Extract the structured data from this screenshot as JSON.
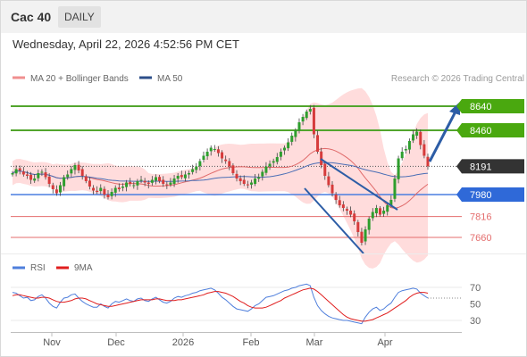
{
  "header": {
    "symbol": "Cac 40",
    "period": "DAILY"
  },
  "datetime": "Wednesday, April 22, 2026 4:52:56 PM CET",
  "legend": {
    "ma20": "MA 20 + Bollinger Bands",
    "ma50": "MA 50",
    "credit": "Research © 2026 Trading Central",
    "rsi": "RSI",
    "rsi_ma": "9MA"
  },
  "colors": {
    "up_candle": "#2e9e2e",
    "down_candle": "#d63b3b",
    "ma20": "#e06a6a",
    "ma50": "#4a6eb5",
    "bollinger_fill": "#ffd6d6",
    "resistance": "#52a52d",
    "pivot": "#4a7ee0",
    "support": "#e46e6e",
    "last_price": "#333333",
    "arrow": "#2d5da6",
    "rsi": "#4f7fdc",
    "rsi_ma": "#e01e1e"
  },
  "price_levels": [
    {
      "value": "8640",
      "kind": "resistance"
    },
    {
      "value": "8460",
      "kind": "resistance"
    },
    {
      "value": "8191",
      "kind": "last"
    },
    {
      "value": "7980",
      "kind": "pivot"
    },
    {
      "value": "7816",
      "kind": "support"
    },
    {
      "value": "7660",
      "kind": "support"
    }
  ],
  "x_axis_labels": [
    "Nov",
    "Dec",
    "2026",
    "Feb",
    "Mar",
    "Apr"
  ],
  "rsi_axis_labels": [
    "70",
    "50",
    "30"
  ],
  "chart_data": {
    "type": "candlestick",
    "price_range": [
      7540,
      8760
    ],
    "series_close": [
      8140,
      8170,
      8160,
      8130,
      8120,
      8090,
      8100,
      8140,
      8150,
      8110,
      8060,
      8020,
      7990,
      8050,
      8110,
      8130,
      8170,
      8200,
      8160,
      8120,
      8080,
      8040,
      8010,
      8000,
      8030,
      7980,
      7960,
      8000,
      8030,
      8020,
      8040,
      8070,
      8060,
      8050,
      8080,
      8090,
      8070,
      8060,
      8090,
      8110,
      8080,
      8060,
      8050,
      8070,
      8100,
      8120,
      8110,
      8130,
      8140,
      8170,
      8190,
      8230,
      8270,
      8300,
      8330,
      8320,
      8290,
      8250,
      8230,
      8190,
      8140,
      8100,
      8080,
      8060,
      8050,
      8070,
      8100,
      8110,
      8150,
      8190,
      8210,
      8230,
      8260,
      8300,
      8330,
      8370,
      8420,
      8460,
      8520,
      8560,
      8600,
      8620,
      8430,
      8300,
      8200,
      8120,
      8050,
      7990,
      7940,
      7900,
      7880,
      7860,
      7830,
      7780,
      7700,
      7620,
      7720,
      7800,
      7850,
      7880,
      7830,
      7860,
      7900,
      7940,
      8100,
      8250,
      8300,
      8320,
      8380,
      8430,
      8450,
      8350,
      8270,
      8191
    ],
    "rsi": {
      "range": [
        20,
        80
      ],
      "ticks": [
        70,
        50,
        30
      ],
      "values": [
        64,
        63,
        60,
        57,
        58,
        54,
        55,
        59,
        61,
        57,
        51,
        47,
        45,
        52,
        57,
        58,
        61,
        62,
        57,
        53,
        50,
        48,
        46,
        46,
        50,
        47,
        45,
        50,
        53,
        52,
        54,
        56,
        54,
        53,
        56,
        57,
        54,
        53,
        56,
        58,
        55,
        52,
        51,
        53,
        57,
        59,
        58,
        60,
        61,
        63,
        64,
        66,
        67,
        68,
        69,
        67,
        63,
        58,
        55,
        51,
        47,
        44,
        43,
        42,
        41,
        44,
        48,
        50,
        54,
        58,
        59,
        60,
        62,
        64,
        66,
        67,
        69,
        70,
        72,
        73,
        74,
        72,
        58,
        48,
        42,
        38,
        35,
        33,
        32,
        31,
        30,
        30,
        29,
        28,
        27,
        26,
        34,
        40,
        44,
        46,
        42,
        44,
        48,
        51,
        58,
        64,
        66,
        67,
        68,
        69,
        68,
        63,
        60,
        57
      ],
      "ma9": [
        60,
        61,
        61,
        60,
        59,
        58,
        57,
        57,
        58,
        58,
        57,
        55,
        53,
        52,
        52,
        53,
        54,
        56,
        57,
        57,
        56,
        54,
        52,
        50,
        49,
        48,
        47,
        47,
        48,
        49,
        50,
        51,
        52,
        53,
        54,
        55,
        55,
        55,
        55,
        56,
        56,
        55,
        54,
        54,
        54,
        55,
        55,
        56,
        57,
        58,
        59,
        60,
        61,
        63,
        64,
        65,
        65,
        64,
        63,
        61,
        59,
        56,
        53,
        51,
        48,
        46,
        45,
        45,
        45,
        46,
        48,
        50,
        52,
        54,
        57,
        59,
        61,
        63,
        65,
        67,
        68,
        69,
        68,
        65,
        61,
        57,
        53,
        49,
        45,
        41,
        37,
        34,
        32,
        31,
        30,
        29,
        29,
        30,
        31,
        33,
        35,
        37,
        39,
        42,
        45,
        48,
        51,
        54,
        58,
        61,
        63,
        64,
        64,
        63
      ]
    }
  }
}
